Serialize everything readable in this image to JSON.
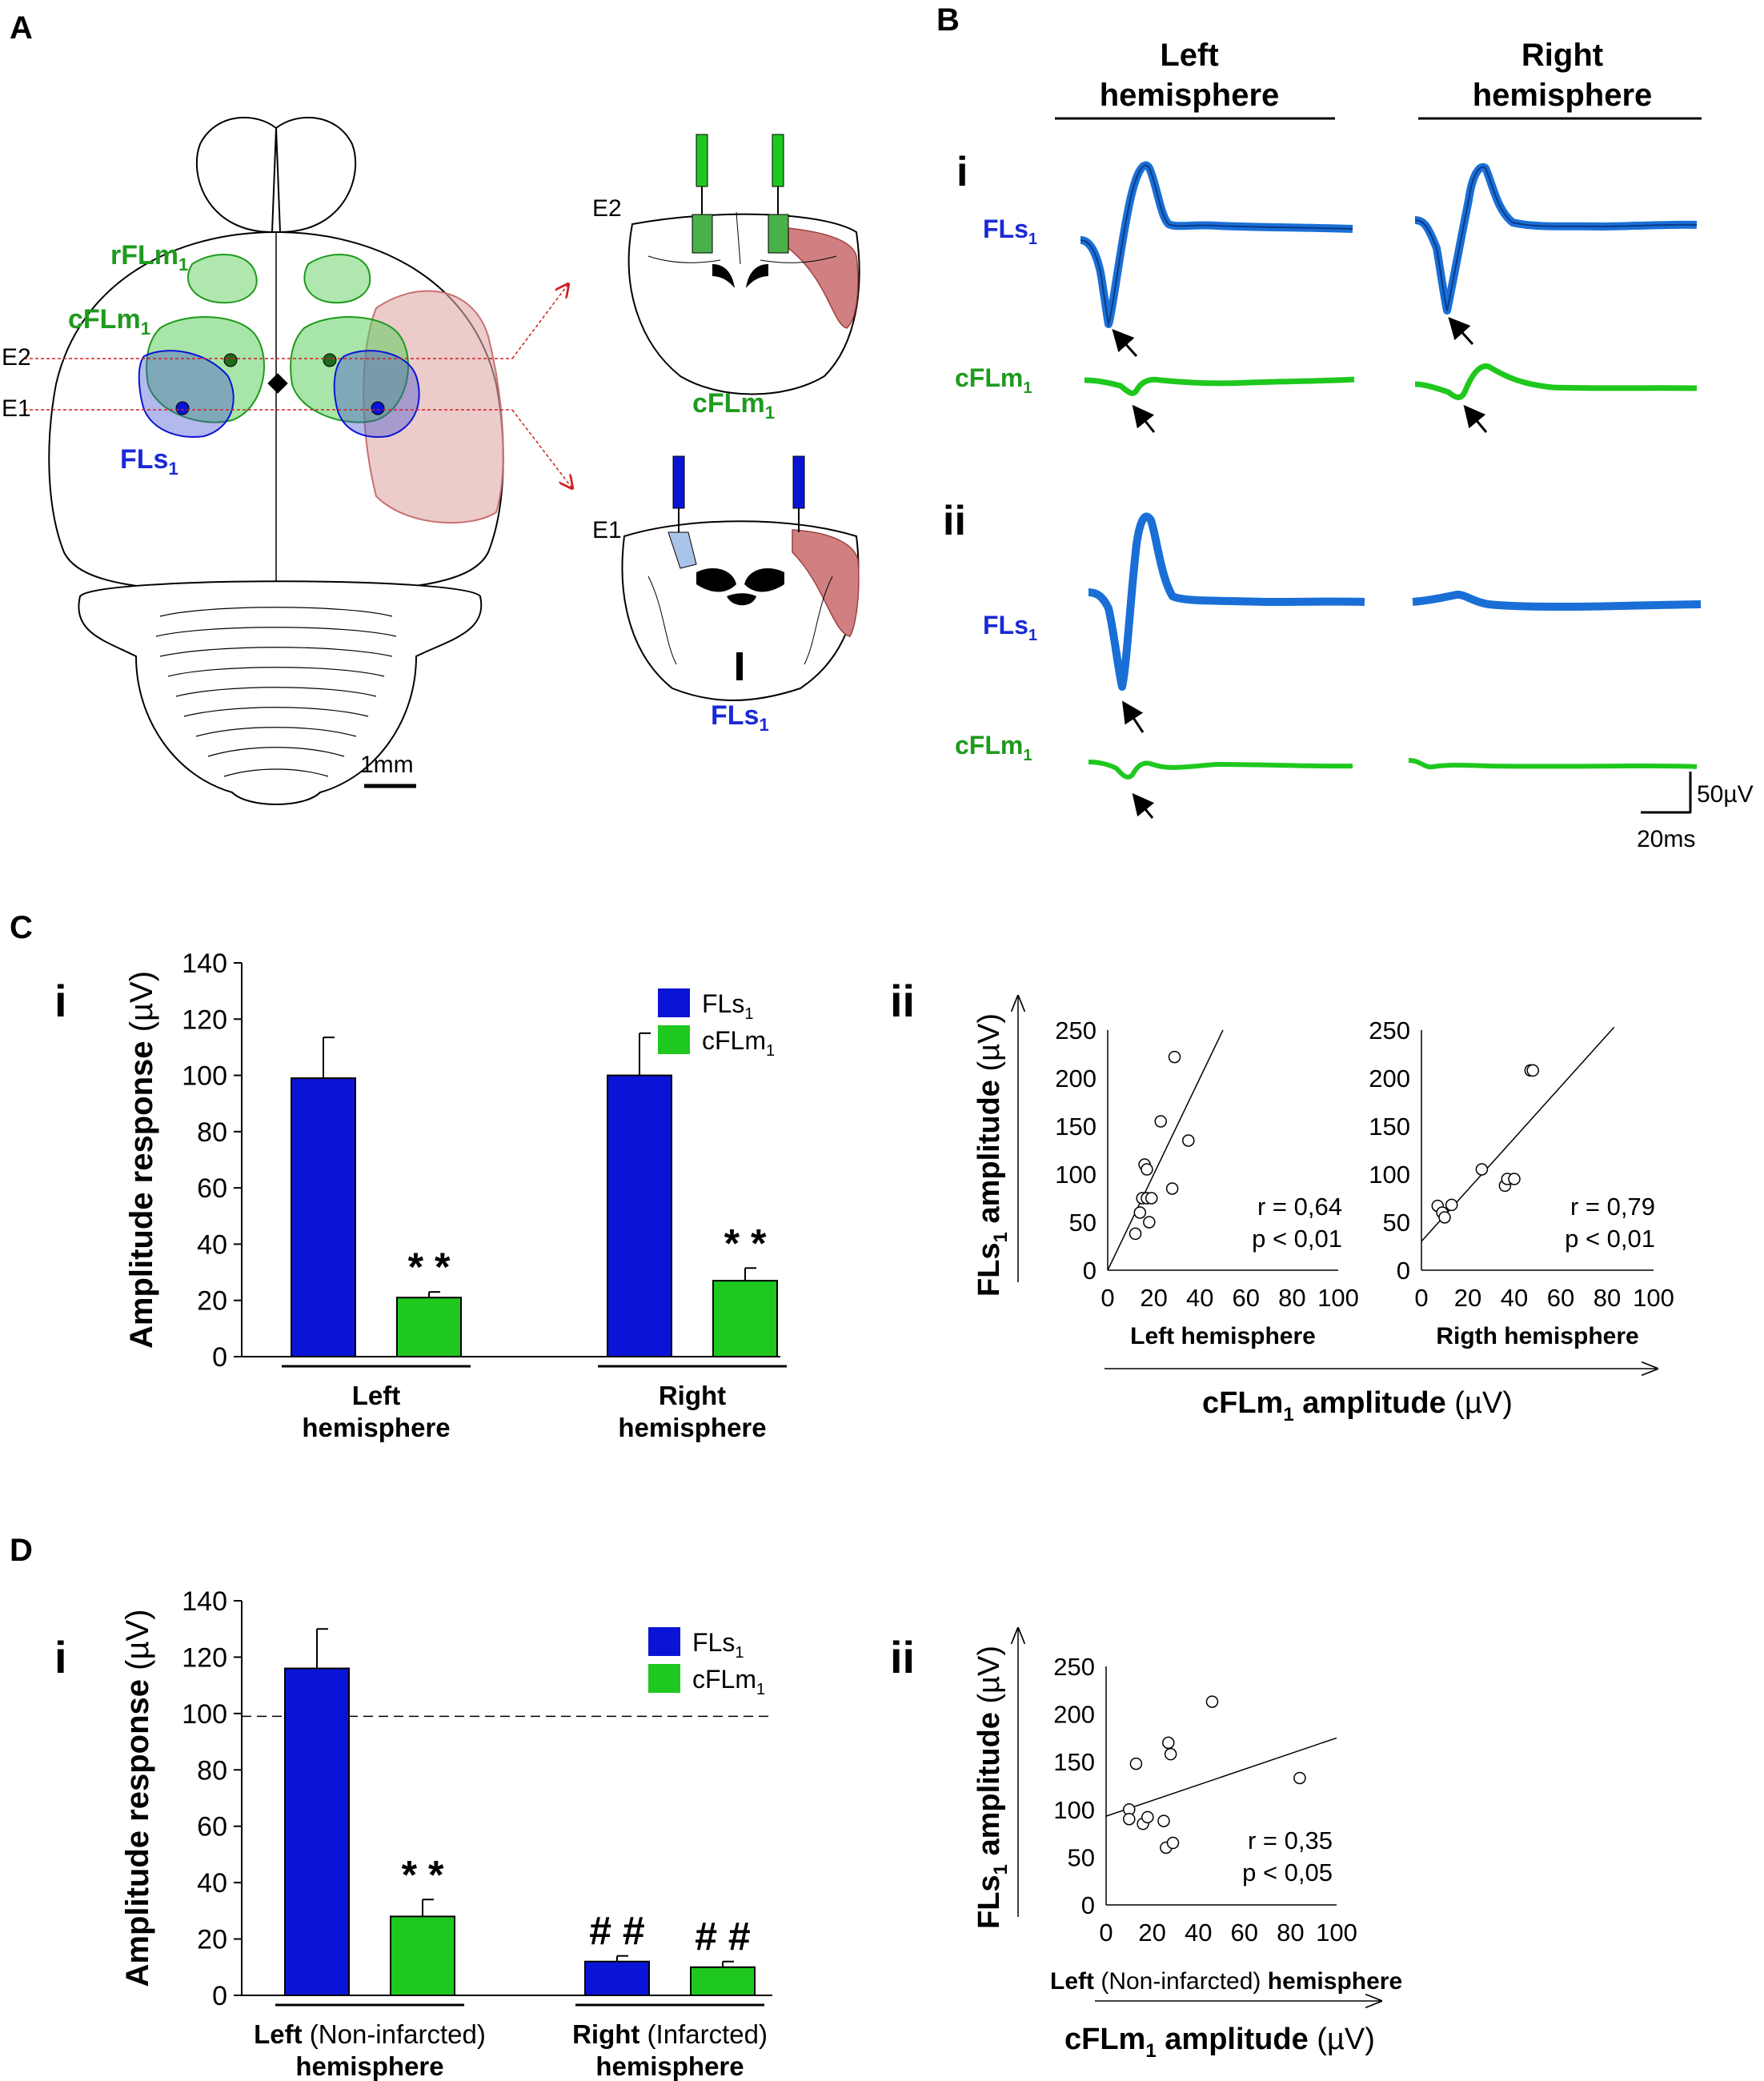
{
  "colors": {
    "blue": "#0a14d6",
    "trace_blue": "#1a6fd6",
    "green": "#1ec81e",
    "green_text": "#1e9a1e",
    "label_blue": "#1a2ad6",
    "infarct": "#c87070"
  },
  "panel_a": {
    "letter": "A",
    "labels": {
      "rflm": "rFLm",
      "cflm": "cFLm",
      "fls": "FLs",
      "sub": "1",
      "e1": "E1",
      "e2": "E2",
      "scale": "1mm",
      "section_e2": "E2",
      "section_e1": "E1"
    }
  },
  "panel_b": {
    "letter": "B",
    "col_left": [
      "Left",
      "hemisphere"
    ],
    "col_right": [
      "Right",
      "hemisphere"
    ],
    "row_i": "i",
    "row_ii": "ii",
    "fls": "FLs",
    "cflm": "cFLm",
    "sub": "1",
    "scale_v": "50µV",
    "scale_t": "20ms"
  },
  "panel_c": {
    "letter": "C",
    "i_label": "i",
    "ii_label": "ii",
    "x_axis_title": "cFLm",
    "x_axis_title_rest": " amplitude",
    "x_unit": " (µV)",
    "y_axis_title": "FLs",
    "y_axis_title_rest": " amplitude",
    "y_unit": " (µV)"
  },
  "panel_d": {
    "letter": "D",
    "i_label": "i",
    "ii_label": "ii",
    "scatter_xlabel_a": "Left",
    "scatter_xlabel_b": " (Non-infarcted) ",
    "scatter_xlabel_c": "hemisphere",
    "x_axis_title": "cFLm",
    "x_axis_title_rest": " amplitude",
    "x_unit": " (µV)",
    "y_axis_title": "FLs",
    "y_axis_title_rest": " amplitude",
    "y_unit": " (µV)"
  },
  "chart_data": [
    {
      "id": "c_i",
      "type": "bar",
      "ylabel": "Amplitude response",
      "yunit": " (µV)",
      "ylim": [
        0,
        140
      ],
      "yticks": [
        0,
        20,
        40,
        60,
        80,
        100,
        120,
        140
      ],
      "groups": [
        {
          "label_lines": [
            "Left",
            "hemisphere"
          ]
        },
        {
          "label_lines": [
            "Right",
            "hemisphere"
          ]
        }
      ],
      "series": [
        {
          "name": "FLs",
          "sub": "1",
          "values": [
            99,
            100
          ],
          "errors": [
            14.5,
            15
          ],
          "marks": [
            "",
            ""
          ]
        },
        {
          "name": "cFLm",
          "sub": "1",
          "values": [
            21,
            27
          ],
          "errors": [
            2,
            4.5
          ],
          "marks": [
            "**",
            "**"
          ]
        }
      ]
    },
    {
      "id": "c_ii_left",
      "type": "scatter",
      "xlabel": "Left hemisphere",
      "xlim": [
        0,
        100
      ],
      "ylim": [
        0,
        250
      ],
      "xticks": [
        0,
        20,
        40,
        60,
        80,
        100
      ],
      "yticks": [
        0,
        50,
        100,
        150,
        200,
        250
      ],
      "points": [
        [
          12,
          38
        ],
        [
          14,
          60
        ],
        [
          15,
          75
        ],
        [
          16,
          110
        ],
        [
          17,
          75
        ],
        [
          17,
          105
        ],
        [
          18,
          50
        ],
        [
          19,
          75
        ],
        [
          23,
          155
        ],
        [
          28,
          85
        ],
        [
          29,
          222
        ],
        [
          35,
          135
        ]
      ],
      "fit": [
        [
          0,
          0
        ],
        [
          50,
          250
        ]
      ],
      "r": "r = 0,64",
      "p": "p < 0,01"
    },
    {
      "id": "c_ii_right",
      "type": "scatter",
      "xlabel": "Rigth hemisphere",
      "xlim": [
        0,
        100
      ],
      "ylim": [
        0,
        250
      ],
      "xticks": [
        0,
        20,
        40,
        60,
        80,
        100
      ],
      "yticks": [
        0,
        50,
        100,
        150,
        200,
        250
      ],
      "points": [
        [
          7,
          67
        ],
        [
          9,
          60
        ],
        [
          10,
          55
        ],
        [
          13,
          68
        ],
        [
          26,
          105
        ],
        [
          36,
          88
        ],
        [
          37,
          95
        ],
        [
          40,
          95
        ],
        [
          47,
          208
        ],
        [
          48,
          208
        ]
      ],
      "fit": [
        [
          0,
          30
        ],
        [
          83,
          253
        ]
      ],
      "r": "r = 0,79",
      "p": "p < 0,01"
    },
    {
      "id": "d_i",
      "type": "bar",
      "ylabel": "Amplitude response",
      "yunit": " (µV)",
      "ylim": [
        0,
        140
      ],
      "yticks": [
        0,
        20,
        40,
        60,
        80,
        100,
        120,
        140
      ],
      "reference_line": 99,
      "groups": [
        {
          "label_a": "Left",
          "label_b": " (Non-infarcted)",
          "label_c": "hemisphere"
        },
        {
          "label_a": "Right",
          "label_b": " (Infarcted)",
          "label_c": "hemisphere"
        }
      ],
      "series": [
        {
          "name": "FLs",
          "sub": "1",
          "values": [
            116,
            12
          ],
          "errors": [
            14,
            2
          ],
          "marks": [
            "",
            "##"
          ]
        },
        {
          "name": "cFLm",
          "sub": "1",
          "values": [
            28,
            10
          ],
          "errors": [
            6,
            2
          ],
          "marks": [
            "**",
            "##"
          ]
        }
      ]
    },
    {
      "id": "d_ii",
      "type": "scatter",
      "xlim": [
        0,
        100
      ],
      "ylim": [
        0,
        250
      ],
      "xticks": [
        0,
        20,
        40,
        60,
        80,
        100
      ],
      "yticks": [
        0,
        50,
        100,
        150,
        200,
        250
      ],
      "points": [
        [
          10,
          100
        ],
        [
          10,
          90
        ],
        [
          13,
          148
        ],
        [
          16,
          85
        ],
        [
          18,
          92
        ],
        [
          25,
          88
        ],
        [
          26,
          60
        ],
        [
          27,
          170
        ],
        [
          28,
          158
        ],
        [
          29,
          65
        ],
        [
          46,
          213
        ],
        [
          84,
          133
        ]
      ],
      "fit": [
        [
          0,
          93
        ],
        [
          100,
          175
        ]
      ],
      "r": "r = 0,35",
      "p": "p < 0,05"
    }
  ]
}
